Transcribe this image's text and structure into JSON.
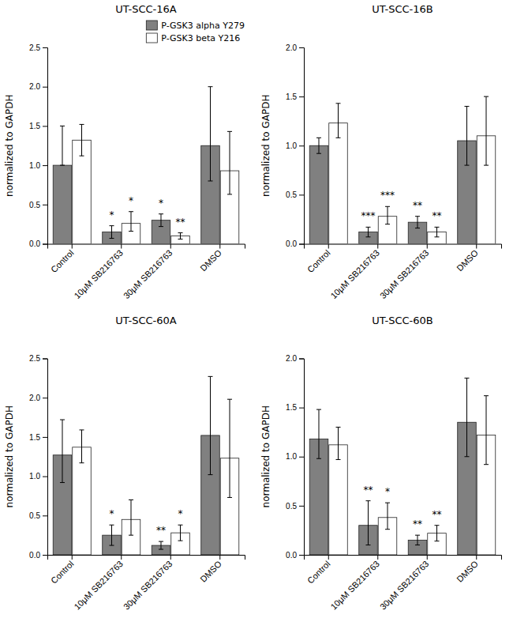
{
  "chart_data": [
    {
      "type": "bar",
      "title": "UT-SCC-16A",
      "ylabel": "normalized to GAPDH",
      "categories": [
        "Control",
        "10μM SB216763",
        "30μM SB216763",
        "DMSO"
      ],
      "ylim": [
        0,
        2.5
      ],
      "yticks": [
        {
          "value": 0,
          "label": "0.0"
        },
        0.5,
        {
          "value": 1,
          "label": "1.0"
        },
        1.5,
        {
          "value": 2,
          "label": "2.0"
        },
        2.5
      ],
      "grid": false,
      "legend": "upper right",
      "series": [
        {
          "name": "P-GSK3 alpha Y279",
          "color": "#808080",
          "values": [
            1.0,
            0.15,
            0.3,
            1.25
          ],
          "error_plus": [
            0.5,
            0.08,
            0.08,
            0.75
          ],
          "error_minus": [
            0.0,
            0.08,
            0.08,
            0.45
          ],
          "significance": [
            null,
            "*",
            "*",
            null
          ]
        },
        {
          "name": "P-GSK3 beta Y216",
          "color": "#ffffff",
          "values": [
            1.32,
            0.26,
            0.1,
            0.93
          ],
          "error_plus": [
            0.2,
            0.15,
            0.04,
            0.5
          ],
          "error_minus": [
            0.2,
            0.1,
            0.04,
            0.3
          ],
          "significance": [
            null,
            "*",
            "**",
            null
          ]
        }
      ]
    },
    {
      "type": "bar",
      "title": "UT-SCC-16B",
      "ylabel": "normalized to GAPDH",
      "categories": [
        "Control",
        "10μM SB216763",
        "30μM SB216763",
        "DMSO"
      ],
      "ylim": [
        0,
        2.0
      ],
      "yticks": [
        {
          "value": 0,
          "label": "0.0"
        },
        0.5,
        {
          "value": 1,
          "label": "1.0"
        },
        1.5,
        {
          "value": 2,
          "label": "2.0"
        }
      ],
      "grid": false,
      "series": [
        {
          "name": "P-GSK3 alpha Y279",
          "color": "#808080",
          "values": [
            1.0,
            0.12,
            0.22,
            1.05
          ],
          "error_plus": [
            0.08,
            0.05,
            0.06,
            0.35
          ],
          "error_minus": [
            0.08,
            0.05,
            0.06,
            0.25
          ],
          "significance": [
            null,
            "***",
            "**",
            null
          ]
        },
        {
          "name": "P-GSK3 beta Y216",
          "color": "#ffffff",
          "values": [
            1.23,
            0.28,
            0.12,
            1.1
          ],
          "error_plus": [
            0.2,
            0.1,
            0.05,
            0.4
          ],
          "error_minus": [
            0.15,
            0.08,
            0.05,
            0.3
          ],
          "significance": [
            null,
            "***",
            "**",
            null
          ]
        }
      ]
    },
    {
      "type": "bar",
      "title": "UT-SCC-60A",
      "ylabel": "normalized to GAPDH",
      "categories": [
        "Control",
        "10μM SB216763",
        "30μM SB216763",
        "DMSO"
      ],
      "ylim": [
        0,
        2.5
      ],
      "yticks": [
        {
          "value": 0,
          "label": "0.0"
        },
        0.5,
        {
          "value": 1,
          "label": "1.0"
        },
        1.5,
        {
          "value": 2,
          "label": "2.0"
        },
        2.5
      ],
      "grid": false,
      "series": [
        {
          "name": "P-GSK3 alpha Y279",
          "color": "#808080",
          "values": [
            1.27,
            0.25,
            0.12,
            1.52
          ],
          "error_plus": [
            0.45,
            0.13,
            0.05,
            0.75
          ],
          "error_minus": [
            0.35,
            0.13,
            0.05,
            0.5
          ],
          "significance": [
            null,
            "*",
            "**",
            null
          ]
        },
        {
          "name": "P-GSK3 beta Y216",
          "color": "#ffffff",
          "values": [
            1.37,
            0.45,
            0.28,
            1.23
          ],
          "error_plus": [
            0.22,
            0.25,
            0.1,
            0.75
          ],
          "error_minus": [
            0.2,
            0.2,
            0.1,
            0.5
          ],
          "significance": [
            null,
            null,
            "*",
            null
          ]
        }
      ]
    },
    {
      "type": "bar",
      "title": "UT-SCC-60B",
      "ylabel": "normalized to GAPDH",
      "categories": [
        "Control",
        "10μM SB216763",
        "30μM SB216763",
        "DMSO"
      ],
      "ylim": [
        0,
        2.0
      ],
      "yticks": [
        {
          "value": 0,
          "label": "0.0"
        },
        0.5,
        {
          "value": 1,
          "label": "1.0"
        },
        1.5,
        {
          "value": 2,
          "label": "2.0"
        }
      ],
      "grid": false,
      "series": [
        {
          "name": "P-GSK3 alpha Y279",
          "color": "#808080",
          "values": [
            1.18,
            0.3,
            0.15,
            1.35
          ],
          "error_plus": [
            0.3,
            0.25,
            0.05,
            0.45
          ],
          "error_minus": [
            0.2,
            0.2,
            0.05,
            0.35
          ],
          "significance": [
            null,
            "**",
            "**",
            null
          ]
        },
        {
          "name": "P-GSK3 beta Y216",
          "color": "#ffffff",
          "values": [
            1.12,
            0.38,
            0.22,
            1.22
          ],
          "error_plus": [
            0.18,
            0.15,
            0.08,
            0.4
          ],
          "error_minus": [
            0.15,
            0.12,
            0.08,
            0.3
          ],
          "significance": [
            null,
            "*",
            "**",
            null
          ]
        }
      ]
    }
  ]
}
